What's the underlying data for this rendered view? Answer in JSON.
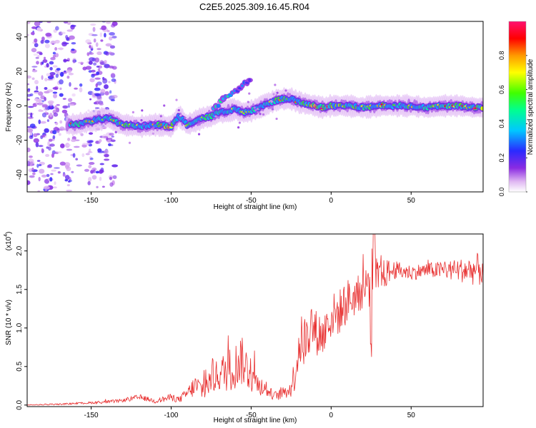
{
  "title": "C2E5.2025.309.16.45.R04",
  "colors": {
    "snr_line": "#e83030",
    "axis": "#000000",
    "spectrum_background": "#ffffff"
  },
  "chart_data": [
    {
      "type": "heatmap",
      "title": "C2E5.2025.309.16.45.R04",
      "xlabel": "Height of straight line (km)",
      "ylabel": "Frequency (Hz)",
      "xlim": [
        -190,
        95
      ],
      "ylim": [
        -50,
        49
      ],
      "xticks": [
        -150,
        -100,
        -50,
        0,
        50
      ],
      "yticks": [
        -40,
        -20,
        0,
        20,
        40
      ],
      "colorbar": {
        "label": "Normalized spectral amplitude",
        "range": [
          0.0,
          1.0
        ],
        "ticks": [
          0.0,
          0.2,
          0.4,
          0.6,
          0.8
        ],
        "tick_labels": [
          "0.0",
          "0.2",
          "0.4",
          "0.6",
          "0.8"
        ],
        "colormap": [
          "#ffffff",
          "#d8a6f0",
          "#8a2be2",
          "#3030ff",
          "#00c8ff",
          "#00ff90",
          "#40ff00",
          "#ffff00",
          "#ff9900",
          "#ff0000",
          "#ff1070"
        ]
      },
      "ridge": {
        "description": "dominant frequency track versus height",
        "x": [
          -160,
          -150,
          -140,
          -130,
          -120,
          -110,
          -100,
          -95,
          -90,
          -85,
          -80,
          -75,
          -70,
          -65,
          -60,
          -55,
          -50,
          -45,
          -40,
          -35,
          -30,
          -25,
          -20,
          -15,
          -10,
          -5,
          0,
          10,
          20,
          30,
          40,
          50,
          60,
          70,
          80,
          90
        ],
        "y": [
          -11,
          -9,
          -7,
          -11,
          -12,
          -11,
          -12,
          -6,
          -11,
          -9,
          -7,
          -6,
          -4,
          -3,
          -2,
          -4,
          -3,
          -1,
          1,
          3,
          4,
          4,
          2,
          1,
          0,
          -1,
          0,
          0,
          -1,
          0,
          0,
          0,
          -1,
          0,
          0,
          -1
        ],
        "amplitude": [
          0.75,
          0.6,
          0.55,
          0.85,
          0.6,
          0.65,
          0.9,
          0.55,
          0.7,
          0.6,
          0.65,
          0.7,
          0.6,
          0.6,
          0.55,
          0.55,
          0.6,
          0.55,
          0.6,
          0.7,
          0.75,
          0.7,
          0.6,
          0.85,
          0.9,
          0.8,
          0.85,
          0.8,
          0.7,
          0.7,
          0.75,
          0.7,
          0.7,
          0.7,
          0.75,
          0.85
        ]
      },
      "secondary_branch": {
        "description": "upward drifting branch",
        "x": [
          -75,
          -70,
          -65,
          -60,
          -55,
          -50
        ],
        "y": [
          -4,
          1,
          5,
          8,
          12,
          16
        ],
        "amplitude": [
          0.45,
          0.5,
          0.45,
          0.4,
          0.35,
          0.3
        ]
      },
      "noise_region": {
        "x_range": [
          -190,
          -135
        ],
        "amplitude_range": [
          0.05,
          0.3
        ]
      }
    },
    {
      "type": "line",
      "xlabel": "Height of straight line (km)",
      "ylabel": "SNR (10 * v/v)",
      "y_multiplier_label": "(x10",
      "y_multiplier_exponent": "4",
      "y_multiplier_suffix": ")",
      "xlim": [
        -190,
        95
      ],
      "ylim": [
        -0.02,
        2.22
      ],
      "xticks": [
        -150,
        -100,
        -50,
        0,
        50
      ],
      "yticks": [
        0.0,
        0.5,
        1.0,
        1.5,
        2.0
      ],
      "ytick_labels": [
        "0.0",
        "0.5",
        "1.0",
        "1.5",
        "2.0"
      ],
      "series": [
        {
          "name": "SNR",
          "color": "#e83030",
          "x": [
            -190,
            -170,
            -160,
            -150,
            -140,
            -130,
            -120,
            -115,
            -110,
            -100,
            -95,
            -90,
            -85,
            -80,
            -75,
            -70,
            -65,
            -60,
            -57,
            -55,
            -50,
            -45,
            -40,
            -35,
            -30,
            -25,
            -22,
            -20,
            -15,
            -12,
            -10,
            -5,
            0,
            5,
            10,
            15,
            20,
            24,
            25,
            27,
            30,
            35,
            40,
            50,
            60,
            70,
            80,
            90,
            95
          ],
          "mean": [
            0.0,
            0.01,
            0.02,
            0.03,
            0.04,
            0.06,
            0.1,
            0.08,
            0.05,
            0.1,
            0.07,
            0.15,
            0.25,
            0.2,
            0.32,
            0.4,
            0.45,
            0.5,
            0.6,
            0.55,
            0.4,
            0.25,
            0.18,
            0.12,
            0.15,
            0.22,
            0.5,
            0.8,
            0.85,
            1.05,
            0.95,
            0.9,
            1.15,
            1.2,
            1.35,
            1.4,
            1.5,
            1.6,
            1.7,
            1.65,
            1.65,
            1.72,
            1.75,
            1.72,
            1.75,
            1.75,
            1.75,
            1.75,
            1.78
          ],
          "spread": [
            0.005,
            0.01,
            0.01,
            0.015,
            0.02,
            0.02,
            0.04,
            0.03,
            0.03,
            0.05,
            0.04,
            0.08,
            0.15,
            0.15,
            0.18,
            0.22,
            0.28,
            0.3,
            0.35,
            0.3,
            0.25,
            0.12,
            0.08,
            0.06,
            0.08,
            0.12,
            0.3,
            0.35,
            0.35,
            0.35,
            0.3,
            0.3,
            0.3,
            0.3,
            0.3,
            0.25,
            0.25,
            0.35,
            0.45,
            0.3,
            0.22,
            0.18,
            0.12,
            0.1,
            0.1,
            0.12,
            0.15,
            0.2,
            0.25
          ]
        }
      ]
    }
  ]
}
